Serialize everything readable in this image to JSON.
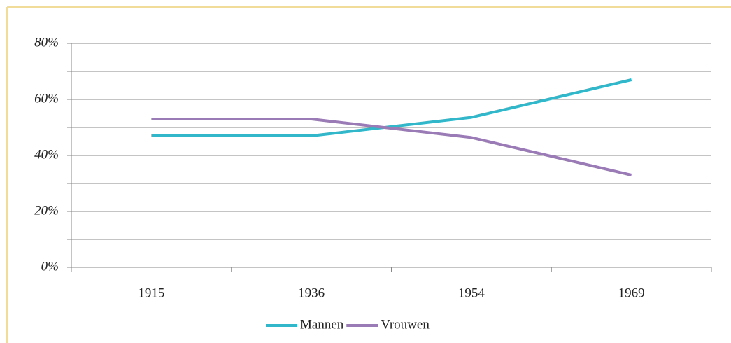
{
  "chart_data": {
    "type": "line",
    "categories": [
      "1915",
      "1936",
      "1954",
      "1969"
    ],
    "series": [
      {
        "name": "Mannen",
        "color": "#31b7c9",
        "values": [
          47,
          47,
          53.6,
          67
        ]
      },
      {
        "name": "Vrouwen",
        "color": "#9a7bb5",
        "values": [
          53,
          53,
          46.4,
          33
        ]
      }
    ],
    "ylim": [
      0,
      80
    ],
    "yticks": [
      {
        "value": 0,
        "label": "0%"
      },
      {
        "value": 20,
        "label": "20%"
      },
      {
        "value": 40,
        "label": "40%"
      },
      {
        "value": 60,
        "label": "60%"
      },
      {
        "value": 80,
        "label": "80%"
      }
    ],
    "minor_yticks": [
      10,
      30,
      50,
      70
    ],
    "grid": true,
    "legend": "bottom"
  }
}
